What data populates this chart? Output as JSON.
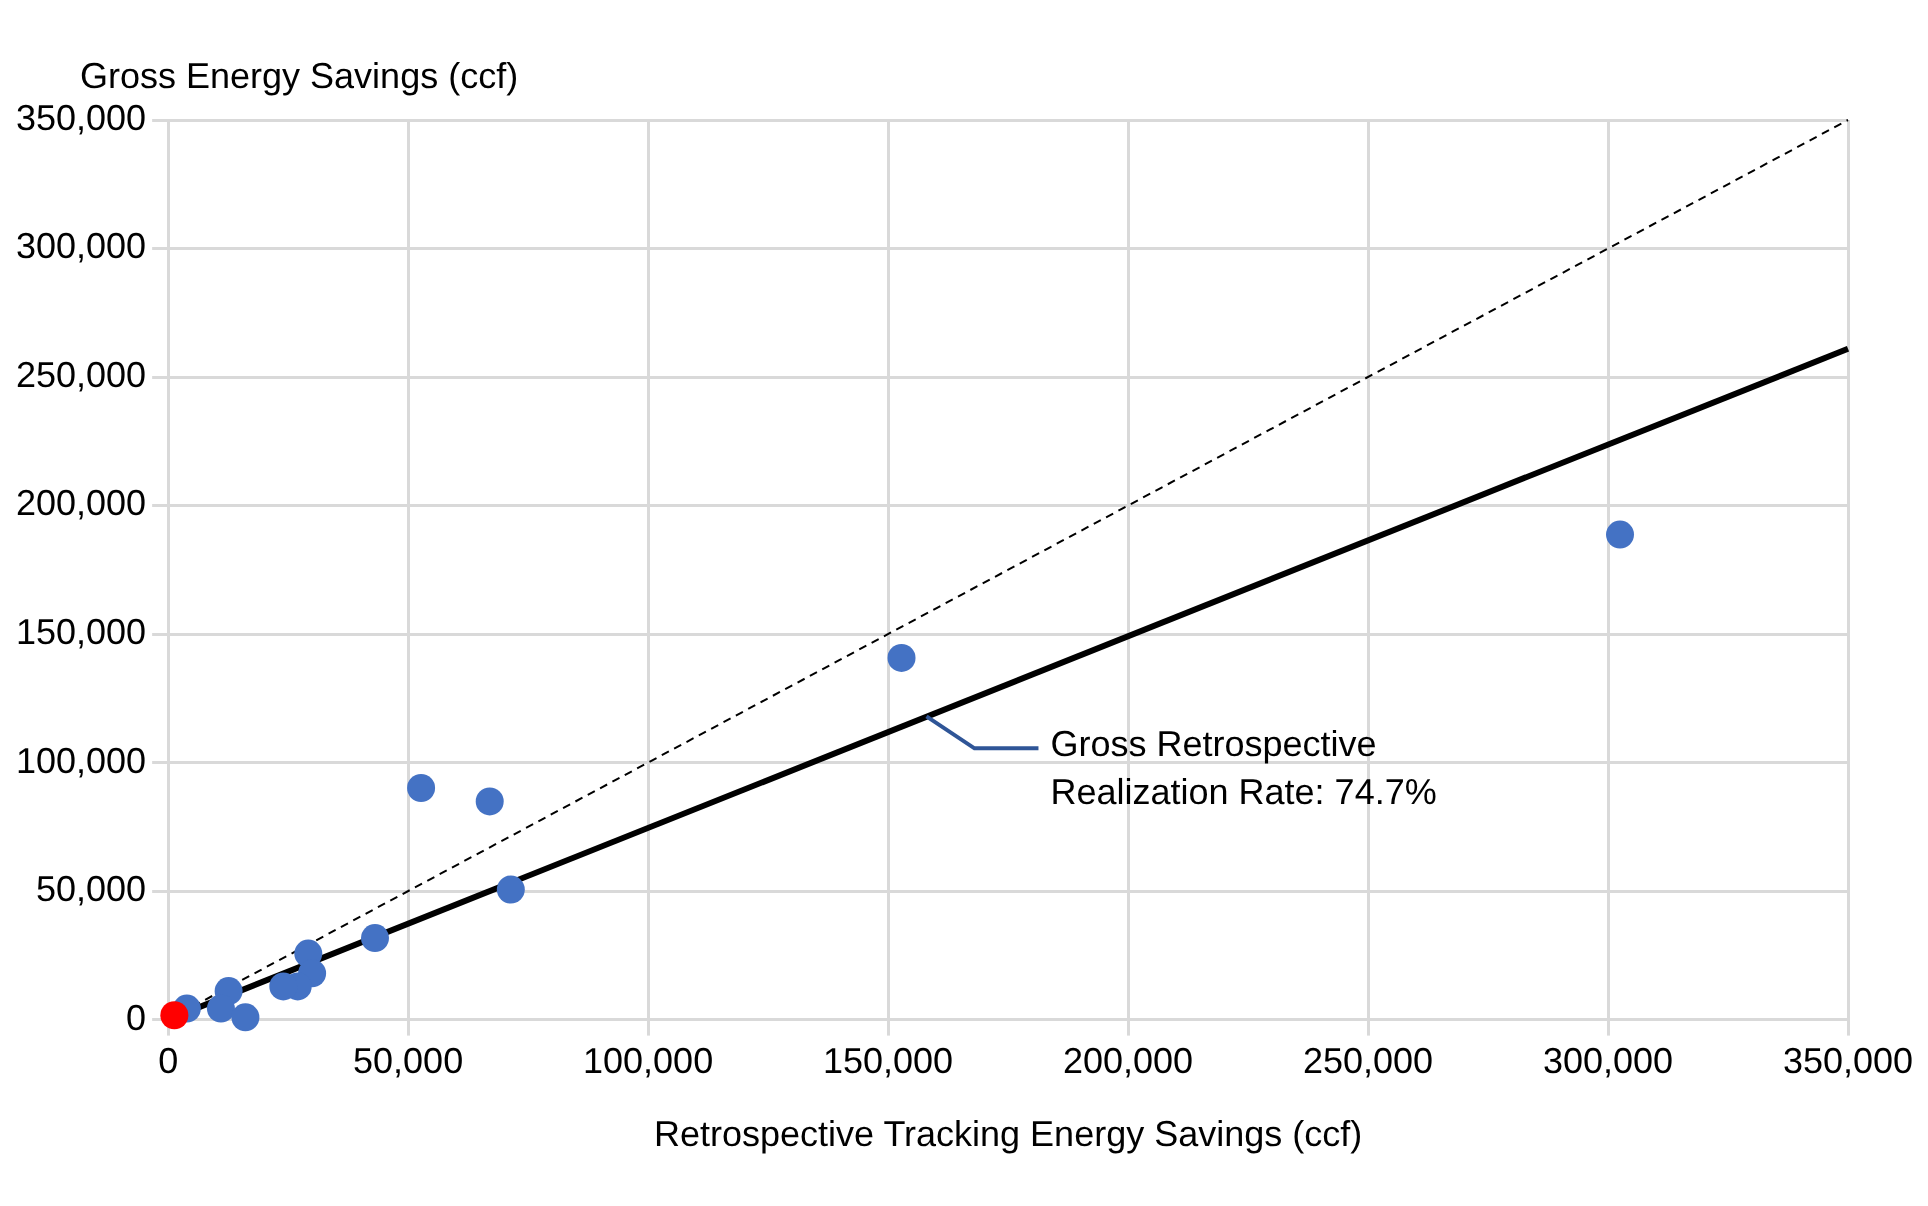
{
  "chart_data": {
    "type": "scatter",
    "xlabel": "Retrospective Tracking Energy Savings (ccf)",
    "ylabel": "Gross Energy Savings (ccf)",
    "xlim": [
      0,
      350000
    ],
    "ylim": [
      0,
      350000
    ],
    "xticks": [
      {
        "value": 0,
        "label": "0"
      },
      {
        "value": 50000,
        "label": "50,000"
      },
      {
        "value": 100000,
        "label": "100,000"
      },
      {
        "value": 150000,
        "label": "150,000"
      },
      {
        "value": 200000,
        "label": "200,000"
      },
      {
        "value": 250000,
        "label": "250,000"
      },
      {
        "value": 300000,
        "label": "300,000"
      },
      {
        "value": 350000,
        "label": "350,000"
      }
    ],
    "yticks": [
      {
        "value": 0,
        "label": "0"
      },
      {
        "value": 50000,
        "label": "50,000"
      },
      {
        "value": 100000,
        "label": "100,000"
      },
      {
        "value": 150000,
        "label": "150,000"
      },
      {
        "value": 200000,
        "label": "200,000"
      },
      {
        "value": 250000,
        "label": "250,000"
      },
      {
        "value": 300000,
        "label": "300,000"
      },
      {
        "value": 350000,
        "label": "350,000"
      }
    ],
    "grid": true,
    "marker": "circle",
    "series": [
      {
        "type": "line",
        "color": "#000000",
        "line_style": "dashed",
        "marker": "none",
        "x": [
          0,
          350000
        ],
        "values": [
          0,
          350000
        ]
      },
      {
        "type": "line",
        "color": "#000000",
        "line_style": "solid",
        "marker": "none",
        "x": [
          0,
          350000
        ],
        "values": [
          0,
          261000
        ]
      },
      {
        "color": "#4472c4",
        "x": [
          302500,
          152800,
          52700,
          67000,
          71400,
          43100,
          29200,
          30000,
          27000,
          24000,
          12600,
          11000,
          16100,
          3900
        ],
        "values": [
          188700,
          140700,
          90100,
          84900,
          50600,
          31700,
          25700,
          18000,
          12900,
          12900,
          11100,
          4300,
          900,
          4300
        ]
      },
      {
        "type": "scatter",
        "color": "#ff0000",
        "x": [
          1300
        ],
        "values": [
          1700
        ]
      }
    ],
    "annotations": [
      {
        "text": "Gross Retrospective Realization Rate: 74.7%",
        "x": 158000,
        "y": 118000
      }
    ]
  }
}
